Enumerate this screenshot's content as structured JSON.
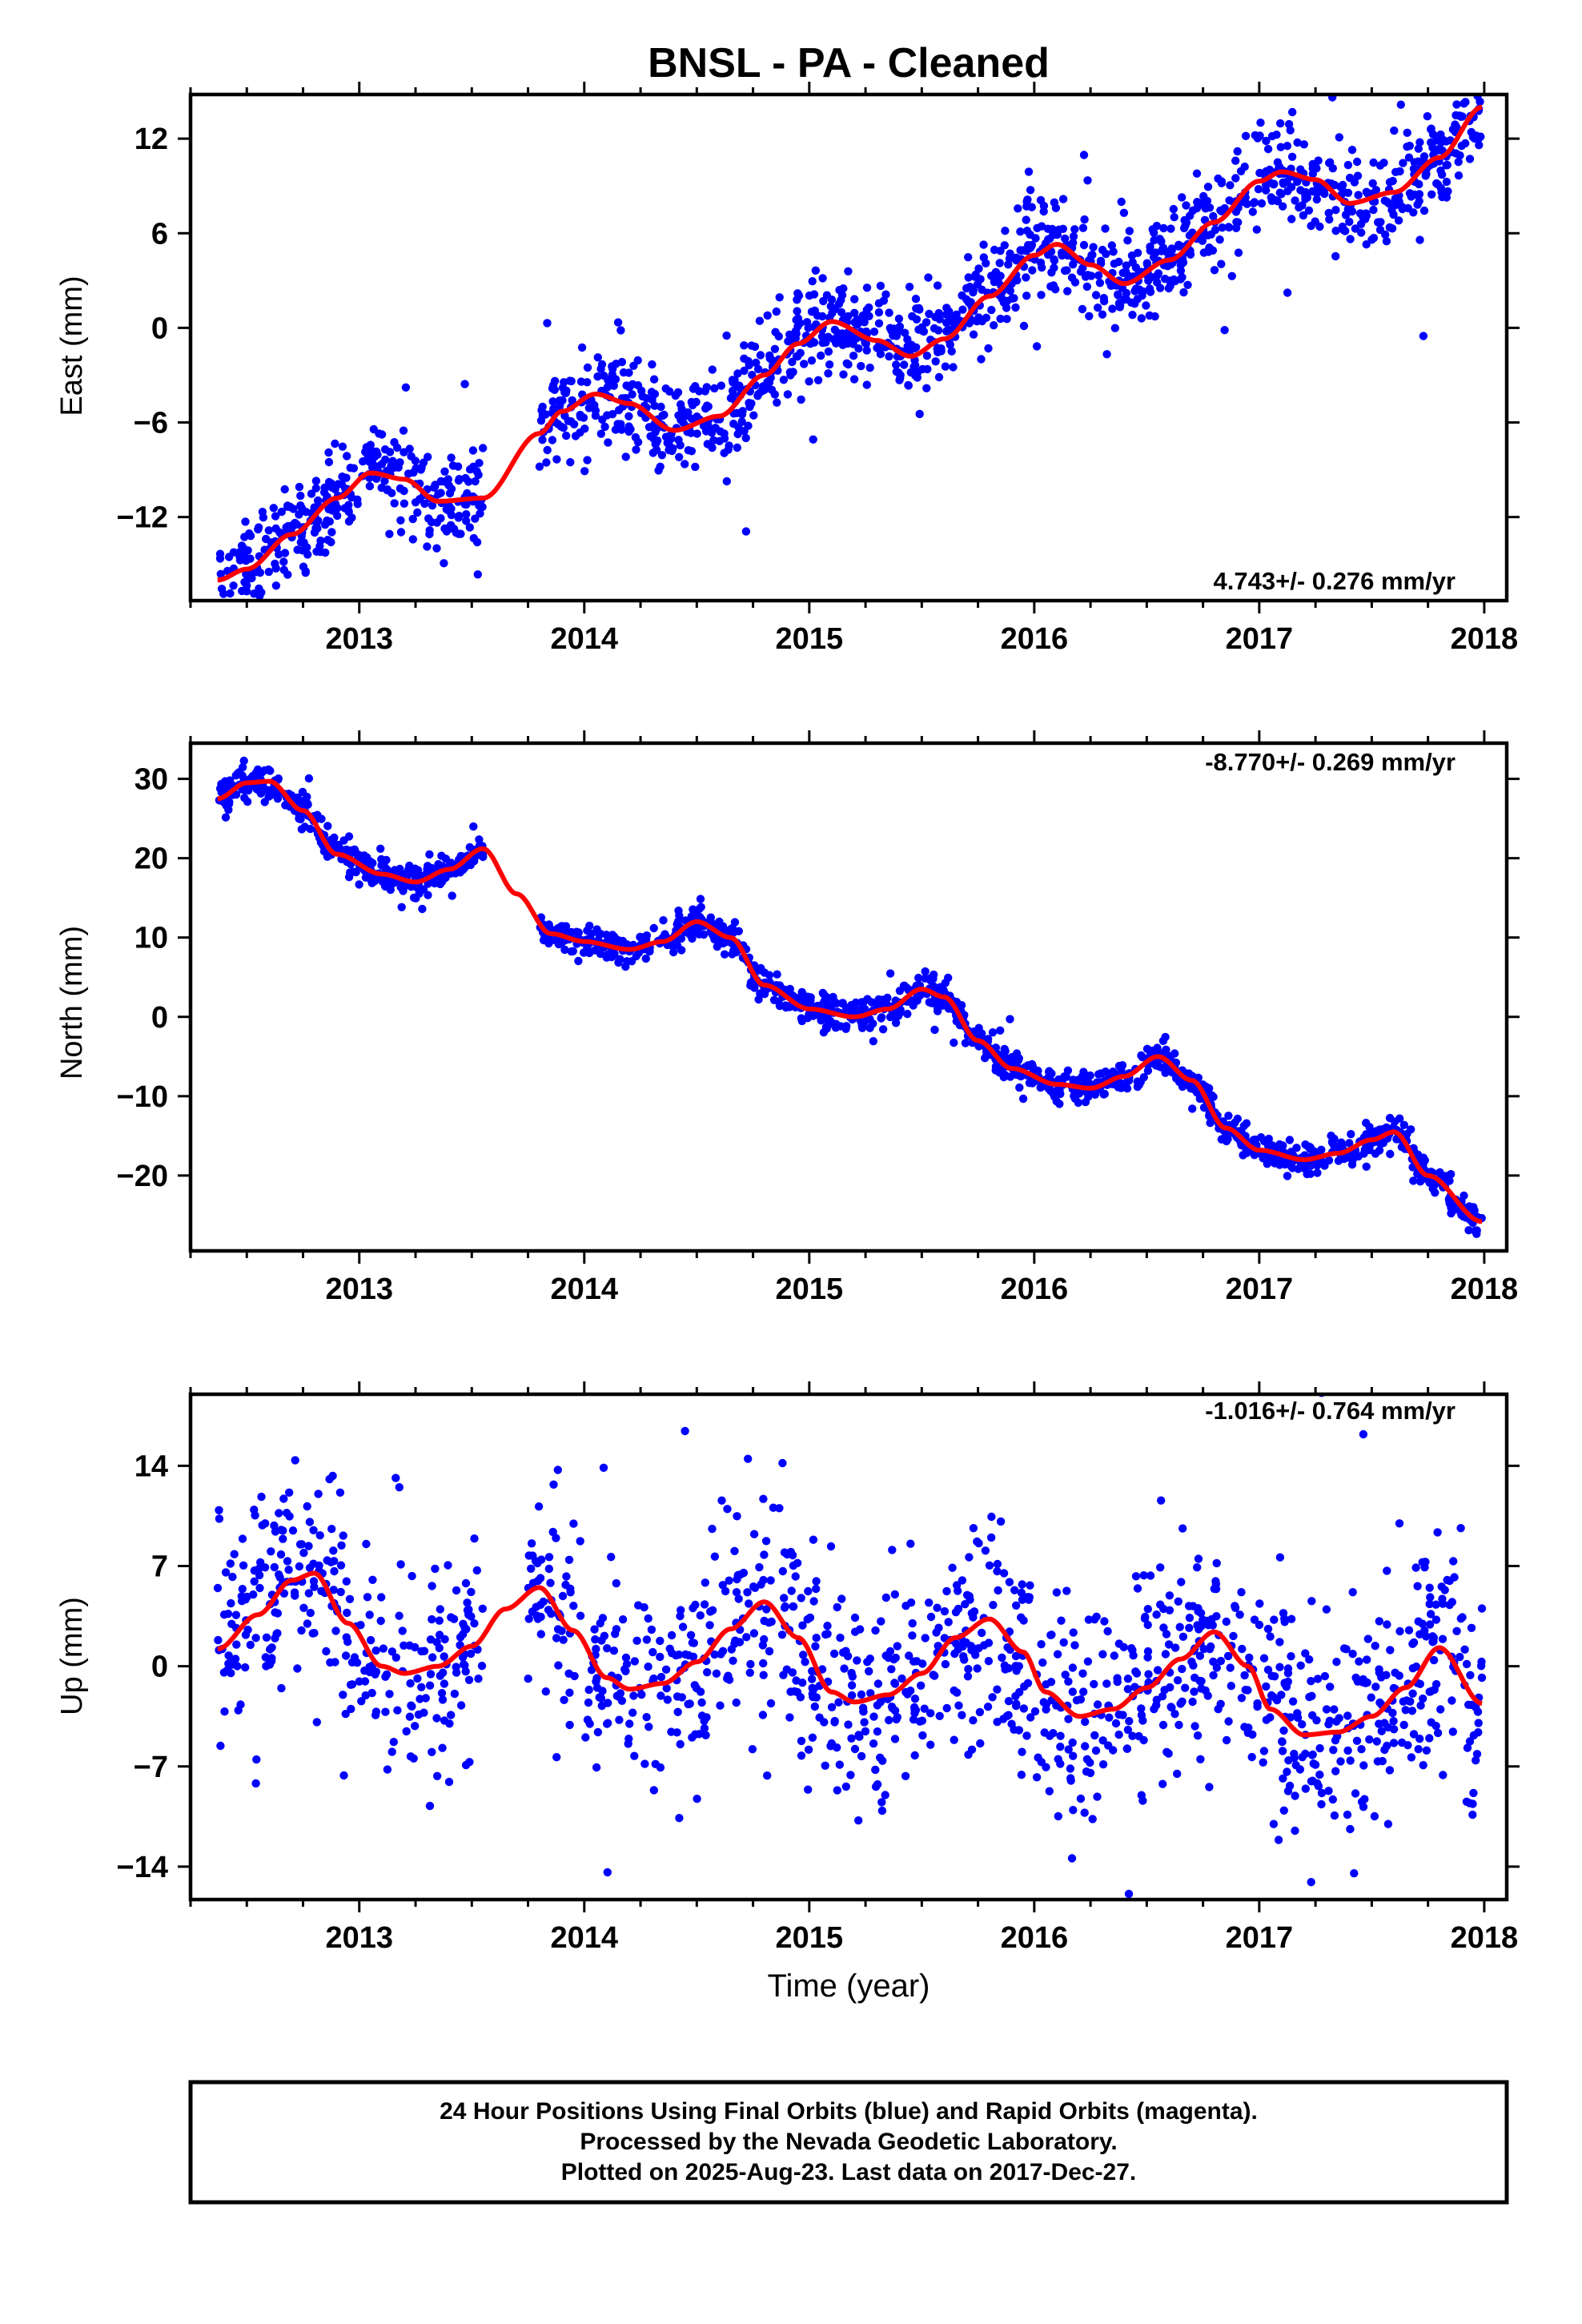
{
  "title": "BNSL  - PA - Cleaned",
  "colors": {
    "final_orbits": "#0000ff",
    "model_fit": "#ff0000",
    "axes": "#000000"
  },
  "caption": {
    "line1": "24 Hour Positions Using Final Orbits (blue) and Rapid Orbits (magenta).",
    "line2": "Processed by the Nevada Geodetic Laboratory.",
    "line3": "Plotted on 2025-Aug-23. Last data on 2017-Dec-27."
  },
  "x_label": "Time (year)",
  "x_ticks": [
    "2013",
    "2014",
    "2015",
    "2016",
    "2017",
    "2018"
  ],
  "chart_data": [
    {
      "type": "scatter",
      "ylabel": "East (mm)",
      "rate_text": "4.743+/- 0.276 mm/yr",
      "rate_position": "bottom-right",
      "xlim": [
        2012.25,
        2018.1
      ],
      "ylim": [
        -17.3,
        14.8
      ],
      "yticks": [
        -12,
        -6,
        0,
        6,
        12
      ],
      "xticks": [
        2013,
        2014,
        2015,
        2016,
        2017,
        2018
      ],
      "data_start": 2012.37,
      "data_end": 2017.99,
      "gaps": [
        [
          2013.55,
          2013.8
        ]
      ],
      "model": {
        "x": [
          2012.37,
          2012.5,
          2012.7,
          2012.9,
          2013.05,
          2013.2,
          2013.35,
          2013.55,
          2013.8,
          2013.9,
          2014.05,
          2014.2,
          2014.4,
          2014.6,
          2014.8,
          2014.95,
          2015.1,
          2015.3,
          2015.45,
          2015.6,
          2015.8,
          2016.0,
          2016.1,
          2016.25,
          2016.4,
          2016.6,
          2016.8,
          2017.0,
          2017.1,
          2017.25,
          2017.4,
          2017.6,
          2017.8,
          2017.99
        ],
        "y": [
          -16.0,
          -15.3,
          -13.1,
          -10.8,
          -9.2,
          -9.6,
          -11.0,
          -10.8,
          -6.7,
          -5.3,
          -4.2,
          -4.8,
          -6.5,
          -5.6,
          -3.0,
          -1.0,
          0.4,
          -0.8,
          -1.8,
          -0.7,
          2.0,
          4.6,
          5.3,
          4.0,
          2.8,
          4.3,
          6.7,
          9.3,
          9.9,
          9.4,
          7.9,
          8.6,
          10.8,
          14.0
        ]
      },
      "spread": 1.6,
      "n_points": 1650
    },
    {
      "type": "scatter",
      "ylabel": "North (mm)",
      "rate_text": "-8.770+/- 0.269 mm/yr",
      "rate_position": "top-right",
      "xlim": [
        2012.25,
        2018.1
      ],
      "ylim": [
        -29.5,
        34.5
      ],
      "yticks": [
        -20,
        -10,
        0,
        10,
        20,
        30
      ],
      "xticks": [
        2013,
        2014,
        2015,
        2016,
        2017,
        2018
      ],
      "data_start": 2012.37,
      "data_end": 2017.99,
      "gaps": [
        [
          2013.55,
          2013.8
        ]
      ],
      "model": {
        "x": [
          2012.37,
          2012.5,
          2012.6,
          2012.75,
          2012.9,
          2013.1,
          2013.25,
          2013.4,
          2013.55,
          2013.7,
          2013.85,
          2014.0,
          2014.2,
          2014.35,
          2014.5,
          2014.65,
          2014.8,
          2015.0,
          2015.2,
          2015.35,
          2015.5,
          2015.6,
          2015.75,
          2015.9,
          2016.1,
          2016.25,
          2016.4,
          2016.55,
          2016.7,
          2016.85,
          2017.0,
          2017.2,
          2017.35,
          2017.5,
          2017.6,
          2017.75,
          2017.99
        ],
        "y": [
          27.5,
          29.5,
          29.7,
          26.0,
          20.5,
          18.0,
          17.0,
          18.6,
          21.2,
          15.5,
          10.5,
          9.5,
          8.5,
          9.5,
          12.0,
          10.0,
          4.0,
          1.0,
          0.0,
          1.0,
          3.5,
          2.5,
          -3.0,
          -6.5,
          -8.5,
          -9.0,
          -7.5,
          -5.0,
          -8.0,
          -14.0,
          -16.8,
          -18.0,
          -17.2,
          -15.5,
          -14.5,
          -20.0,
          -25.8
        ]
      },
      "spread": 1.0,
      "n_points": 1650
    },
    {
      "type": "scatter",
      "ylabel": "Up (mm)",
      "rate_text": "-1.016+/- 0.764 mm/yr",
      "rate_position": "top-right",
      "xlim": [
        2012.25,
        2018.1
      ],
      "ylim": [
        -16.3,
        19.0
      ],
      "yticks": [
        -14,
        -7,
        0,
        7,
        14
      ],
      "xticks": [
        2013,
        2014,
        2015,
        2016,
        2017,
        2018
      ],
      "data_start": 2012.37,
      "data_end": 2017.99,
      "gaps": [
        [
          2013.55,
          2013.75
        ]
      ],
      "model": {
        "x": [
          2012.37,
          2012.55,
          2012.7,
          2012.8,
          2012.95,
          2013.1,
          2013.2,
          2013.35,
          2013.5,
          2013.65,
          2013.8,
          2013.95,
          2014.1,
          2014.2,
          2014.35,
          2014.5,
          2014.65,
          2014.8,
          2014.95,
          2015.1,
          2015.2,
          2015.35,
          2015.5,
          2015.65,
          2015.8,
          2015.95,
          2016.05,
          2016.2,
          2016.35,
          2016.5,
          2016.65,
          2016.8,
          2016.95,
          2017.05,
          2017.2,
          2017.35,
          2017.5,
          2017.65,
          2017.8,
          2017.99
        ],
        "y": [
          1.2,
          3.6,
          6.0,
          6.5,
          3.0,
          0.0,
          -0.5,
          0.0,
          1.4,
          4.0,
          5.5,
          2.5,
          -0.8,
          -1.6,
          -1.2,
          0.3,
          2.6,
          4.5,
          2.0,
          -1.8,
          -2.5,
          -2.0,
          -0.5,
          2.0,
          3.3,
          1.0,
          -1.8,
          -3.5,
          -3.0,
          -1.5,
          0.5,
          2.4,
          0.0,
          -3.0,
          -4.8,
          -4.6,
          -3.5,
          -1.5,
          1.3,
          -2.6
        ]
      },
      "spread": 4.0,
      "n_points": 1450
    }
  ]
}
